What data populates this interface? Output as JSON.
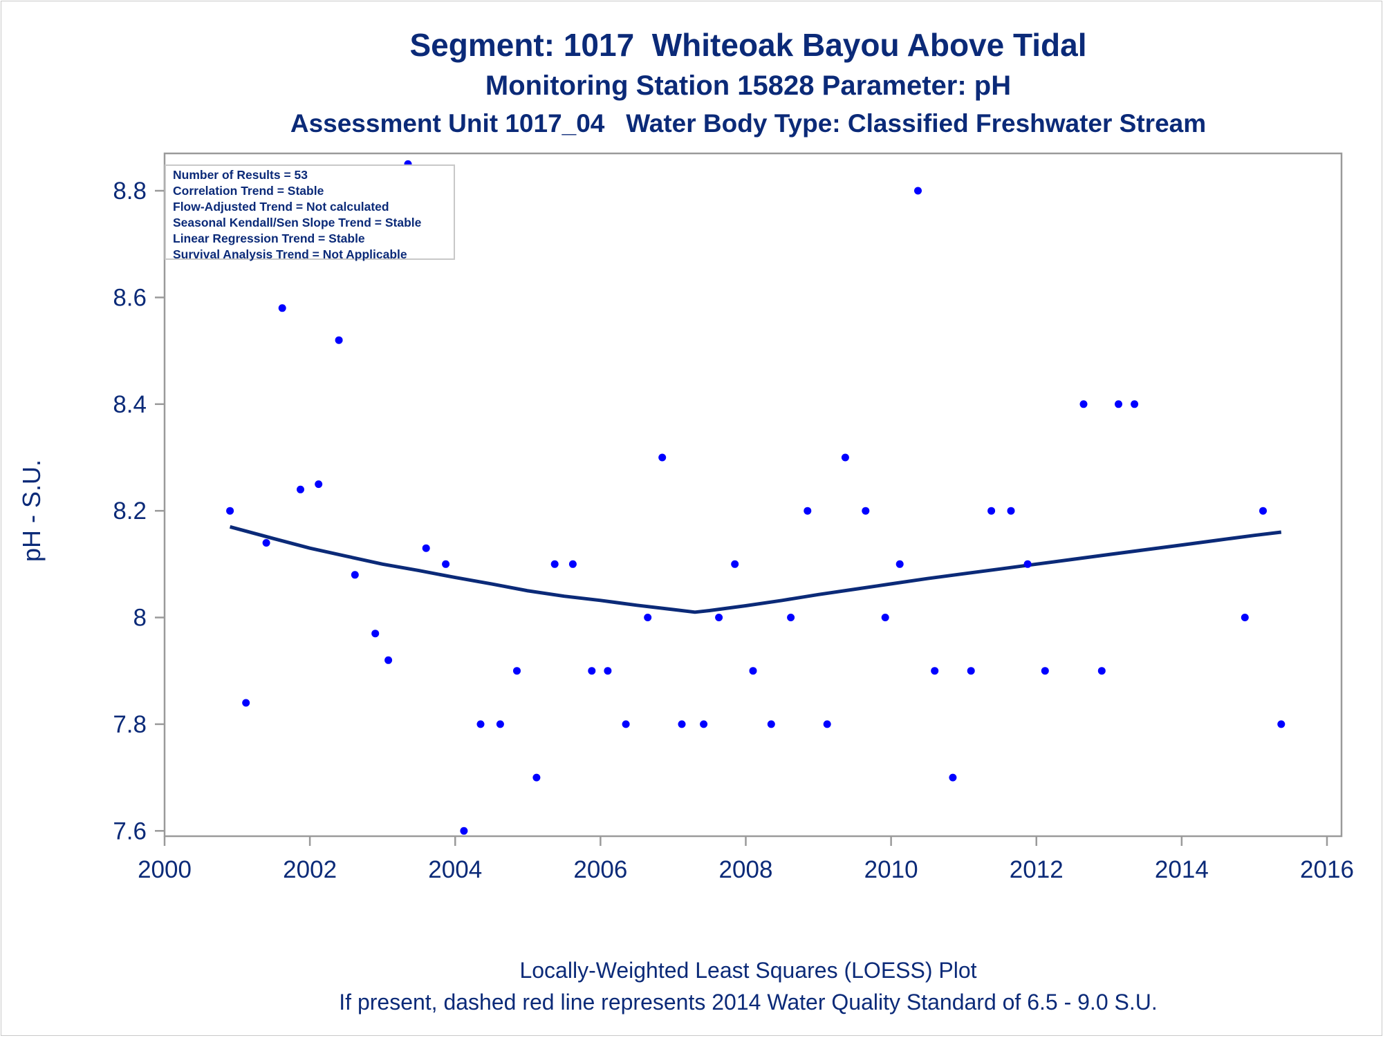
{
  "titles": {
    "line1": "Segment: 1017  Whiteoak Bayou Above Tidal",
    "line2": "Monitoring Station 15828 Parameter: pH",
    "line3": "Assessment Unit 1017_04   Water Body Type: Classified Freshwater Stream"
  },
  "footnotes": {
    "line1": "Locally-Weighted Least Squares (LOESS) Plot",
    "line2": "If present, dashed red line represents 2014 Water Quality Standard of 6.5 - 9.0 S.U."
  },
  "info_box": [
    "Number of Results = 53",
    "Correlation Trend = Stable",
    "Flow-Adjusted Trend = Not calculated",
    "Seasonal Kendall/Sen Slope Trend = Stable",
    "Linear Regression Trend = Stable",
    "Survival Analysis Trend = Not Applicable"
  ],
  "colors": {
    "text": "#0b2a78",
    "points": "#0000ff",
    "loess_line": "#0b2a78",
    "axis": "#9a9a9a"
  },
  "chart_data": {
    "type": "scatter",
    "title": "Segment: 1017  Whiteoak Bayou Above Tidal",
    "xlabel": "",
    "ylabel": "pH - S.U.",
    "xlim": [
      2000,
      2016.2
    ],
    "ylim": [
      7.59,
      8.87
    ],
    "xticks": [
      2000,
      2002,
      2004,
      2006,
      2008,
      2010,
      2012,
      2014,
      2016
    ],
    "yticks": [
      7.6,
      7.8,
      8,
      8.2,
      8.4,
      8.6,
      8.8
    ],
    "ytick_labels": [
      "7.6",
      "7.8",
      "8",
      "8.2",
      "8.4",
      "8.6",
      "8.8"
    ],
    "grid": false,
    "series": [
      {
        "type": "scatter",
        "x": [
          2000.9,
          2001.12,
          2001.4,
          2001.62,
          2001.87,
          2002.12,
          2002.4,
          2002.62,
          2002.9,
          2003.08,
          2003.35,
          2003.6,
          2003.87,
          2004.12,
          2004.35,
          2004.62,
          2004.85,
          2005.12,
          2005.37,
          2005.62,
          2005.88,
          2006.1,
          2006.35,
          2006.65,
          2006.85,
          2007.12,
          2007.42,
          2007.63,
          2007.85,
          2008.1,
          2008.35,
          2008.62,
          2008.85,
          2009.12,
          2009.37,
          2009.65,
          2009.92,
          2010.12,
          2010.37,
          2010.6,
          2010.85,
          2011.1,
          2011.38,
          2011.65,
          2011.88,
          2012.12,
          2012.65,
          2012.9,
          2013.13,
          2013.35,
          2014.87,
          2015.12,
          2015.37
        ],
        "y": [
          8.2,
          7.84,
          8.14,
          8.58,
          8.24,
          8.25,
          8.52,
          8.08,
          7.97,
          7.92,
          8.85,
          8.13,
          8.1,
          7.6,
          7.8,
          7.8,
          7.9,
          7.7,
          8.1,
          8.1,
          7.9,
          7.9,
          7.8,
          8.0,
          8.3,
          7.8,
          7.8,
          8.0,
          8.1,
          7.9,
          7.8,
          8.0,
          8.2,
          7.8,
          8.3,
          8.2,
          8.0,
          8.1,
          8.8,
          7.9,
          7.7,
          7.9,
          8.2,
          8.2,
          8.1,
          7.9,
          8.4,
          7.9,
          8.4,
          8.4,
          8.0,
          8.2,
          7.8
        ]
      },
      {
        "type": "line",
        "x": [
          2000.9,
          2001.5,
          2002.0,
          2002.5,
          2003.0,
          2003.5,
          2004.0,
          2004.5,
          2005.0,
          2005.5,
          2006.0,
          2006.5,
          2007.0,
          2007.3,
          2007.5,
          2008.0,
          2008.5,
          2009.0,
          2009.5,
          2010.0,
          2010.5,
          2011.0,
          2011.5,
          2012.0,
          2012.5,
          2013.0,
          2013.5,
          2014.0,
          2014.5,
          2015.0,
          2015.37
        ],
        "y": [
          8.17,
          8.148,
          8.13,
          8.115,
          8.1,
          8.088,
          8.075,
          8.063,
          8.05,
          8.04,
          8.032,
          8.023,
          8.015,
          8.01,
          8.013,
          8.022,
          8.032,
          8.043,
          8.053,
          8.063,
          8.073,
          8.082,
          8.091,
          8.1,
          8.109,
          8.118,
          8.127,
          8.136,
          8.145,
          8.154,
          8.16
        ]
      }
    ]
  }
}
